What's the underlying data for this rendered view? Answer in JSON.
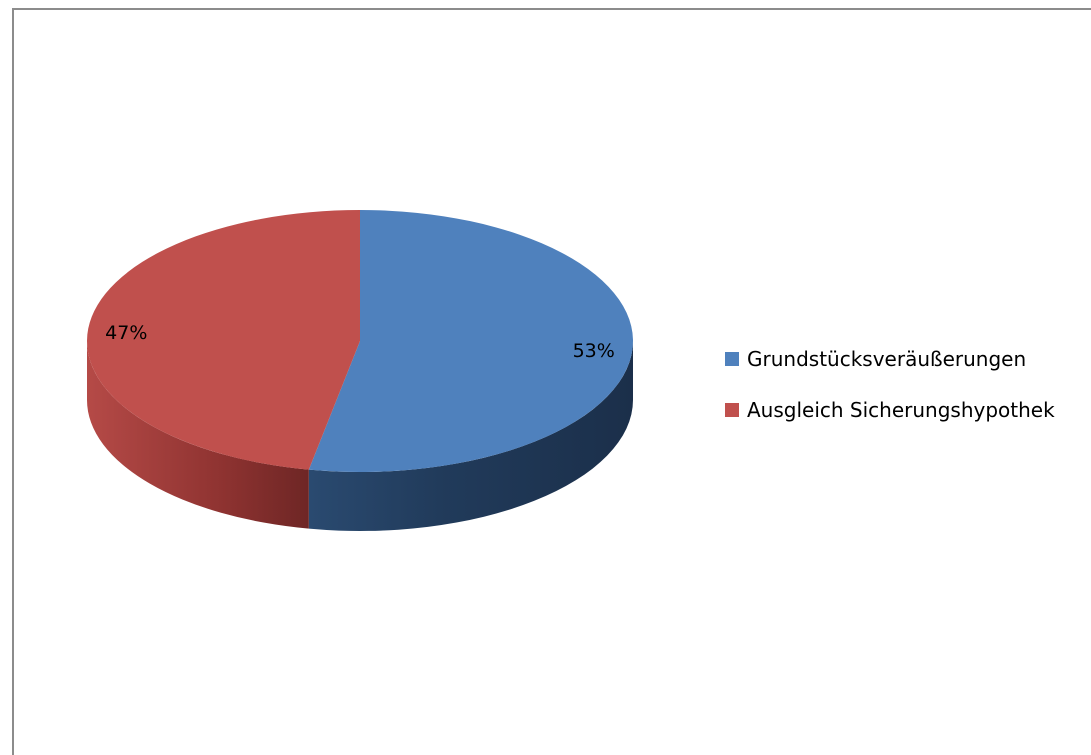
{
  "chart_data": {
    "type": "pie",
    "title": "",
    "three_d": true,
    "categories": [
      "Grundstücksveräußerungen",
      "Ausgleich Sicherungshypothek"
    ],
    "values": [
      53,
      47
    ],
    "labels": [
      "53%",
      "47%"
    ],
    "colors": [
      "#4f81bd",
      "#c0504d"
    ],
    "legend_position": "right"
  }
}
